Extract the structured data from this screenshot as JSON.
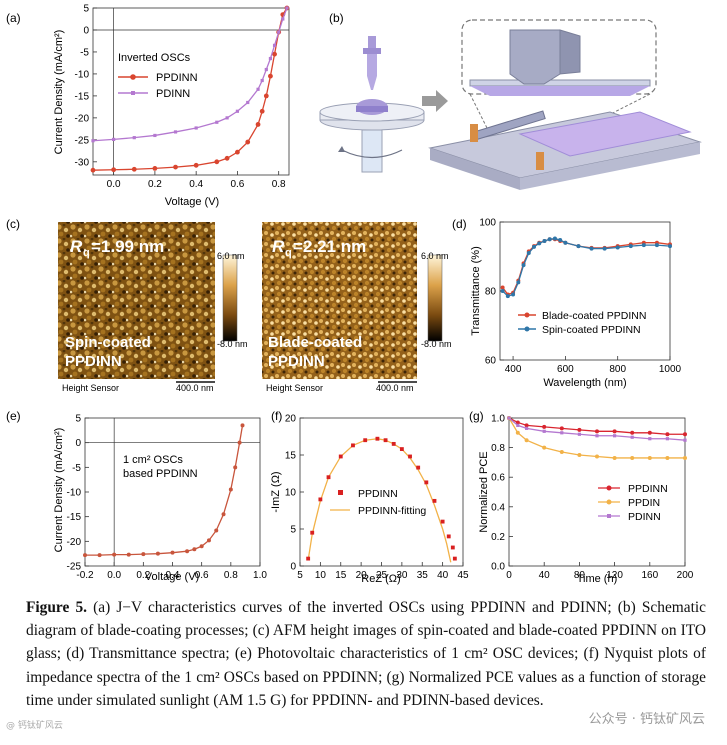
{
  "colors": {
    "red": "#d9452f",
    "purple": "#b478d0",
    "orange": "#f2b248",
    "blue": "#2f76a8",
    "dark": "#222222"
  },
  "panels": {
    "a": {
      "label": "(a)",
      "ylabel": "Current Density (mA/cm²)",
      "xlabel": "Voltage (V)",
      "xticks": [
        "0.0",
        "0.2",
        "0.4",
        "0.6",
        "0.8"
      ],
      "yticks": [
        "5",
        "0",
        "-5",
        "-10",
        "-15",
        "-20",
        "-25",
        "-30"
      ],
      "legend_title": "Inverted OSCs",
      "legend": [
        "PPDINN",
        "PDINN"
      ]
    },
    "b": {
      "label": "(b)"
    },
    "c": {
      "label": "(c)",
      "img1_text": "R",
      "img1_sub": "q",
      "img1_val": "=1.99 nm",
      "img1_lab1": "Spin-coated",
      "img1_lab2": "PPDINN",
      "img2_val": "=2.21 nm",
      "img2_lab1": "Blade-coated",
      "img2_lab2": "PPDINN",
      "scale_top": "6.0 nm",
      "scale_bottom": "-8.0 nm",
      "sensor": "Height Sensor",
      "scalebar": "400.0 nm"
    },
    "d": {
      "label": "(d)",
      "ylabel": "Transmittance (%)",
      "xlabel": "Wavelength (nm)",
      "xticks": [
        "400",
        "600",
        "800",
        "1000"
      ],
      "yticks": [
        "100",
        "80",
        "60"
      ],
      "legend": [
        "Blade-coated PPDINN",
        "Spin-coated PPDINN"
      ]
    },
    "e": {
      "label": "(e)",
      "ylabel": "Current Density (mA/cm²)",
      "xlabel": "Voltage (V)",
      "xticks": [
        "-0.2",
        "0.0",
        "0.2",
        "0.4",
        "0.6",
        "0.8",
        "1.0"
      ],
      "yticks": [
        "5",
        "0",
        "-5",
        "-10",
        "-15",
        "-20",
        "-25"
      ],
      "note1": "1 cm² OSCs",
      "note2": "based PPDINN"
    },
    "f": {
      "label": "(f)",
      "ylabel": "-ImZ (Ω)",
      "xlabel": "ReZ (Ω)",
      "xticks": [
        "5",
        "10",
        "15",
        "20",
        "25",
        "30",
        "35",
        "40",
        "45"
      ],
      "yticks": [
        "20",
        "15",
        "10",
        "5",
        "0"
      ],
      "legend": [
        "PPDINN",
        "PPDINN-fitting"
      ]
    },
    "g": {
      "label": "(g)",
      "ylabel": "Normalized PCE",
      "xlabel": "Time (h)",
      "xticks": [
        "0",
        "40",
        "80",
        "120",
        "160",
        "200"
      ],
      "yticks": [
        "1.0",
        "0.8",
        "0.6",
        "0.4",
        "0.2",
        "0.0"
      ],
      "legend": [
        "PPDINN",
        "PPDIN",
        "PDINN"
      ]
    }
  },
  "chart_data": [
    {
      "type": "line",
      "panel": "a",
      "xlabel": "Voltage (V)",
      "ylabel": "Current Density (mA/cm2)",
      "xlim": [
        -0.1,
        0.85
      ],
      "ylim": [
        -33,
        5
      ],
      "series": [
        {
          "name": "PPDINN",
          "x": [
            -0.1,
            0.0,
            0.1,
            0.2,
            0.3,
            0.4,
            0.5,
            0.55,
            0.6,
            0.65,
            0.7,
            0.72,
            0.74,
            0.76,
            0.78,
            0.8,
            0.82,
            0.84
          ],
          "y": [
            -31.9,
            -31.8,
            -31.7,
            -31.5,
            -31.2,
            -30.8,
            -30,
            -29.2,
            -27.8,
            -25.5,
            -21.5,
            -18.5,
            -15,
            -10.5,
            -5.5,
            -0.5,
            3.5,
            5
          ]
        },
        {
          "name": "PDINN",
          "x": [
            -0.1,
            0.0,
            0.1,
            0.2,
            0.3,
            0.4,
            0.5,
            0.55,
            0.6,
            0.65,
            0.7,
            0.72,
            0.74,
            0.76,
            0.78,
            0.8,
            0.82,
            0.84
          ],
          "y": [
            -25.2,
            -24.9,
            -24.5,
            -24,
            -23.2,
            -22.3,
            -21,
            -20,
            -18.5,
            -16.5,
            -13.5,
            -11.5,
            -9,
            -6.5,
            -3.5,
            -0.5,
            2.5,
            5
          ]
        }
      ]
    },
    {
      "type": "line",
      "panel": "d",
      "xlabel": "Wavelength (nm)",
      "ylabel": "Transmittance (%)",
      "xlim": [
        350,
        1000
      ],
      "ylim": [
        60,
        100
      ],
      "series": [
        {
          "name": "Blade-coated PPDINN",
          "x": [
            360,
            380,
            400,
            420,
            440,
            460,
            480,
            500,
            520,
            540,
            560,
            580,
            600,
            650,
            700,
            750,
            800,
            850,
            900,
            950,
            1000
          ],
          "y": [
            81,
            79,
            79.5,
            83,
            88,
            91.5,
            93,
            94,
            94.5,
            95,
            95,
            94.5,
            94,
            93,
            92.5,
            92.5,
            93,
            93.5,
            94,
            94,
            93.5
          ]
        },
        {
          "name": "Spin-coated PPDINN",
          "x": [
            360,
            380,
            400,
            420,
            440,
            460,
            480,
            500,
            520,
            540,
            560,
            580,
            600,
            650,
            700,
            750,
            800,
            850,
            900,
            950,
            1000
          ],
          "y": [
            80,
            78.5,
            79,
            82.5,
            87.5,
            91,
            92.8,
            93.8,
            94.5,
            95,
            95.2,
            94.8,
            94,
            93,
            92.3,
            92.3,
            92.6,
            93,
            93.3,
            93.3,
            93
          ]
        }
      ]
    },
    {
      "type": "line",
      "panel": "e",
      "xlabel": "Voltage (V)",
      "ylabel": "Current Density (mA/cm2)",
      "xlim": [
        -0.2,
        1.0
      ],
      "ylim": [
        -25,
        5
      ],
      "series": [
        {
          "name": "PPDINN 1 cm2",
          "x": [
            -0.2,
            -0.1,
            0,
            0.1,
            0.2,
            0.3,
            0.4,
            0.5,
            0.55,
            0.6,
            0.65,
            0.7,
            0.75,
            0.8,
            0.83,
            0.86,
            0.88
          ],
          "y": [
            -22.8,
            -22.8,
            -22.7,
            -22.7,
            -22.6,
            -22.5,
            -22.3,
            -22,
            -21.6,
            -21,
            -19.8,
            -17.8,
            -14.5,
            -9.5,
            -5,
            0,
            3.5
          ]
        }
      ]
    },
    {
      "type": "scatter",
      "panel": "f",
      "xlabel": "ReZ (Ω)",
      "ylabel": "-ImZ (Ω)",
      "xlim": [
        5,
        45
      ],
      "ylim": [
        0,
        20
      ],
      "series": [
        {
          "name": "PPDINN",
          "x": [
            7,
            8,
            10,
            12,
            15,
            18,
            21,
            24,
            26,
            28,
            30,
            32,
            34,
            36,
            38,
            40,
            41.5,
            42.5,
            43
          ],
          "y": [
            1,
            4.5,
            9,
            12,
            14.8,
            16.3,
            17,
            17.2,
            17,
            16.5,
            15.8,
            14.8,
            13.3,
            11.3,
            8.8,
            6,
            4,
            2.5,
            1
          ]
        },
        {
          "name": "PPDINN-fitting",
          "x": [
            7,
            8,
            10,
            12,
            15,
            18,
            21,
            24,
            26,
            28,
            30,
            32,
            34,
            36,
            38,
            40,
            41,
            42
          ],
          "y": [
            0.8,
            4.3,
            8.8,
            12,
            14.8,
            16.3,
            17,
            17.2,
            17,
            16.5,
            15.8,
            14.6,
            13,
            11,
            8.2,
            5,
            3,
            0.5
          ]
        }
      ]
    },
    {
      "type": "line",
      "panel": "g",
      "xlabel": "Time (h)",
      "ylabel": "Normalized PCE",
      "xlim": [
        0,
        200
      ],
      "ylim": [
        0,
        1.0
      ],
      "series": [
        {
          "name": "PPDINN",
          "x": [
            0,
            10,
            20,
            40,
            60,
            80,
            100,
            120,
            140,
            160,
            180,
            200
          ],
          "y": [
            1,
            0.97,
            0.95,
            0.94,
            0.93,
            0.92,
            0.91,
            0.91,
            0.9,
            0.9,
            0.89,
            0.89
          ]
        },
        {
          "name": "PPDIN",
          "x": [
            0,
            10,
            20,
            40,
            60,
            80,
            100,
            120,
            140,
            160,
            180,
            200
          ],
          "y": [
            1,
            0.9,
            0.85,
            0.8,
            0.77,
            0.75,
            0.74,
            0.73,
            0.73,
            0.73,
            0.73,
            0.73
          ]
        },
        {
          "name": "PDINN",
          "x": [
            0,
            10,
            20,
            40,
            60,
            80,
            100,
            120,
            140,
            160,
            180,
            200
          ],
          "y": [
            1,
            0.95,
            0.93,
            0.91,
            0.9,
            0.89,
            0.88,
            0.88,
            0.87,
            0.86,
            0.86,
            0.85
          ]
        }
      ]
    }
  ],
  "caption": {
    "fig": "Figure 5.",
    "text": " (a) J−V characteristics curves of the inverted OSCs using PPDINN and PDINN; (b) Schematic diagram of blade-coating processes; (c) AFM height images of spin-coated and blade-coated PPDINN on ITO glass; (d) Transmittance spectra; (e) Photovoltaic characteristics of 1 cm² OSC devices; (f) Nyquist plots of impedance spectra of the 1 cm² OSCs based on PPDINN; (g) Normalized PCE values as a function of storage time under simulated sunlight (AM 1.5 G) for PPDINN- and PDINN-based devices."
  },
  "watermark": "公众号 · 钙钛矿风云",
  "watermark_left": "@ 钙钛矿风云"
}
